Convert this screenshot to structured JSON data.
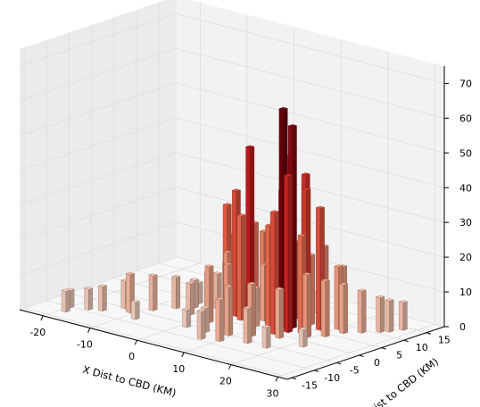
{
  "chart_data": {
    "type": "bar3d",
    "title": "",
    "xlabel": "X Dist to CBD (KM)",
    "ylabel": "Y Dist to CBD (KM)",
    "zlabel": "",
    "xlim": [
      -25,
      32
    ],
    "ylim": [
      -16,
      19
    ],
    "zlim": [
      0,
      75
    ],
    "x_ticks": [
      -20,
      -10,
      0,
      10,
      20,
      30
    ],
    "y_ticks": [
      -15,
      -10,
      -5,
      0,
      5,
      10,
      15
    ],
    "z_ticks": [
      0,
      10,
      20,
      30,
      40,
      50,
      60,
      70
    ],
    "grid": true,
    "colormap": "reds",
    "bars": [
      {
        "x": 13,
        "y": 3,
        "z": 63
      },
      {
        "x": 14,
        "y": 4,
        "z": 58
      },
      {
        "x": 12,
        "y": 6,
        "z": 48
      },
      {
        "x": 11,
        "y": 5,
        "z": 38
      },
      {
        "x": 15,
        "y": 2,
        "z": 45
      },
      {
        "x": 14,
        "y": 0,
        "z": 35
      },
      {
        "x": 16,
        "y": 5,
        "z": 40
      },
      {
        "x": 13,
        "y": 8,
        "z": 42
      },
      {
        "x": 17,
        "y": 3,
        "z": 28
      },
      {
        "x": 10,
        "y": 3,
        "z": 25
      },
      {
        "x": 12,
        "y": 1,
        "z": 30
      },
      {
        "x": 11,
        "y": 8,
        "z": 22
      },
      {
        "x": 15,
        "y": 7,
        "z": 20
      },
      {
        "x": 18,
        "y": 6,
        "z": 35
      },
      {
        "x": 16,
        "y": 9,
        "z": 22
      },
      {
        "x": 4,
        "y": 5,
        "z": 48
      },
      {
        "x": 3,
        "y": 3,
        "z": 36
      },
      {
        "x": 2,
        "y": 2,
        "z": 32
      },
      {
        "x": 5,
        "y": 2,
        "z": 30
      },
      {
        "x": 3,
        "y": 7,
        "z": 25
      },
      {
        "x": 1,
        "y": 5,
        "z": 22
      },
      {
        "x": 4,
        "y": 0,
        "z": 20
      },
      {
        "x": 6,
        "y": 6,
        "z": 24
      },
      {
        "x": 6,
        "y": -2,
        "z": 18
      },
      {
        "x": 2,
        "y": -2,
        "z": 16
      },
      {
        "x": 0,
        "y": 4,
        "z": 14
      },
      {
        "x": 8,
        "y": 4,
        "z": 16
      },
      {
        "x": 9,
        "y": 7,
        "z": 14
      },
      {
        "x": 12,
        "y": -3,
        "z": 15
      },
      {
        "x": 16,
        "y": -1,
        "z": 14
      },
      {
        "x": 19,
        "y": 2,
        "z": 18
      },
      {
        "x": 21,
        "y": 4,
        "z": 16
      },
      {
        "x": 20,
        "y": 8,
        "z": 18
      },
      {
        "x": 22,
        "y": 7,
        "z": 14
      },
      {
        "x": 18,
        "y": 11,
        "z": 16
      },
      {
        "x": 24,
        "y": 9,
        "z": 12
      },
      {
        "x": 26,
        "y": 11,
        "z": 10
      },
      {
        "x": 28,
        "y": 14,
        "z": 8
      },
      {
        "x": 27,
        "y": 12,
        "z": 9
      },
      {
        "x": 14,
        "y": -6,
        "z": 10
      },
      {
        "x": 10,
        "y": -8,
        "z": 12
      },
      {
        "x": 9,
        "y": -5,
        "z": 14
      },
      {
        "x": 7,
        "y": -9,
        "z": 8
      },
      {
        "x": -1,
        "y": 1,
        "z": 12
      },
      {
        "x": -2,
        "y": 4,
        "z": 10
      },
      {
        "x": -3,
        "y": -1,
        "z": 9
      },
      {
        "x": -5,
        "y": 2,
        "z": 8
      },
      {
        "x": -7,
        "y": 0,
        "z": 9
      },
      {
        "x": -9,
        "y": -3,
        "z": 10
      },
      {
        "x": -11,
        "y": -6,
        "z": 11
      },
      {
        "x": -13,
        "y": -5,
        "z": 8
      },
      {
        "x": -15,
        "y": -8,
        "z": 7
      },
      {
        "x": -17,
        "y": -9,
        "z": 6
      },
      {
        "x": -19,
        "y": -12,
        "z": 6
      },
      {
        "x": -20,
        "y": -10,
        "z": 5
      },
      {
        "x": -6,
        "y": 4,
        "z": 6
      },
      {
        "x": -4,
        "y": 6,
        "z": 5
      },
      {
        "x": 0,
        "y": 8,
        "z": 6
      },
      {
        "x": 8,
        "y": 10,
        "z": 7
      },
      {
        "x": 12,
        "y": 12,
        "z": 6
      },
      {
        "x": 18,
        "y": -6,
        "z": 6
      },
      {
        "x": 22,
        "y": -2,
        "z": 5
      },
      {
        "x": 5,
        "y": -6,
        "z": 7
      },
      {
        "x": 1,
        "y": -6,
        "z": 5
      },
      {
        "x": -8,
        "y": -8,
        "z": 5
      },
      {
        "x": 9,
        "y": 1,
        "z": 11
      }
    ]
  }
}
